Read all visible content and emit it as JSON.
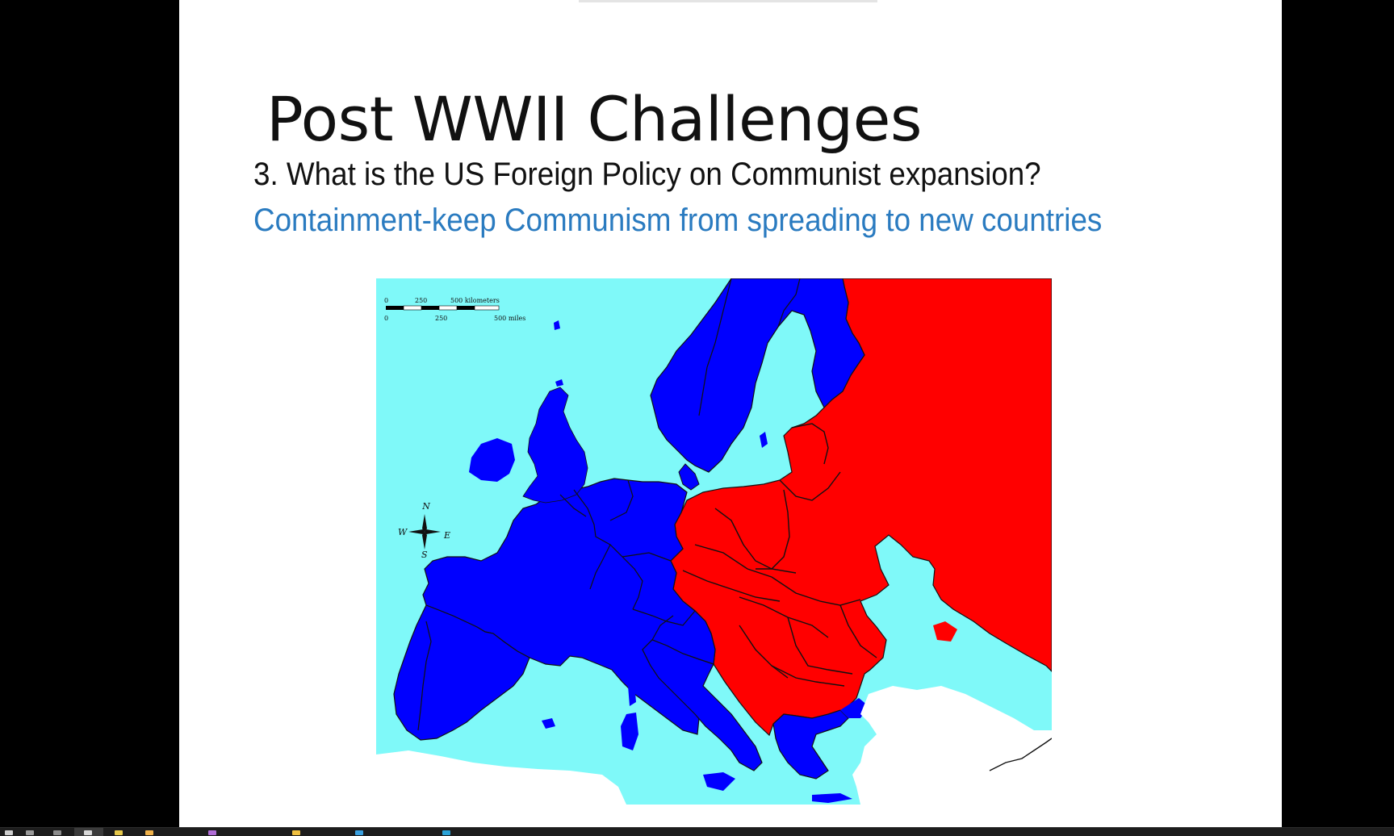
{
  "slide": {
    "title": "Post WWII Challenges",
    "question": "3. What is the US Foreign Policy on Communist expansion?",
    "answer": "Containment-keep Communism from spreading to new countries",
    "answer_color": "#2a7bc0"
  },
  "map": {
    "colors": {
      "sea": "#7ff9f9",
      "western_bloc": "#0000ff",
      "communist_bloc": "#ff0000",
      "other_land": "#ffffff",
      "borders": "#111111"
    },
    "scale_bar": {
      "km_ticks": [
        "0",
        "250",
        "500 kilometers"
      ],
      "mile_ticks": [
        "0",
        "250",
        "500 miles"
      ]
    },
    "compass": {
      "north": "N",
      "south": "S",
      "east": "E",
      "west": "W"
    }
  },
  "taskbar": {
    "icons": [
      "start-icon",
      "task-view-icon",
      "search-icon",
      "edge-icon",
      "file-explorer-icon",
      "folder-icon",
      "chrome-icon",
      "store-icon",
      "mail-icon",
      "powerpoint-icon"
    ]
  }
}
